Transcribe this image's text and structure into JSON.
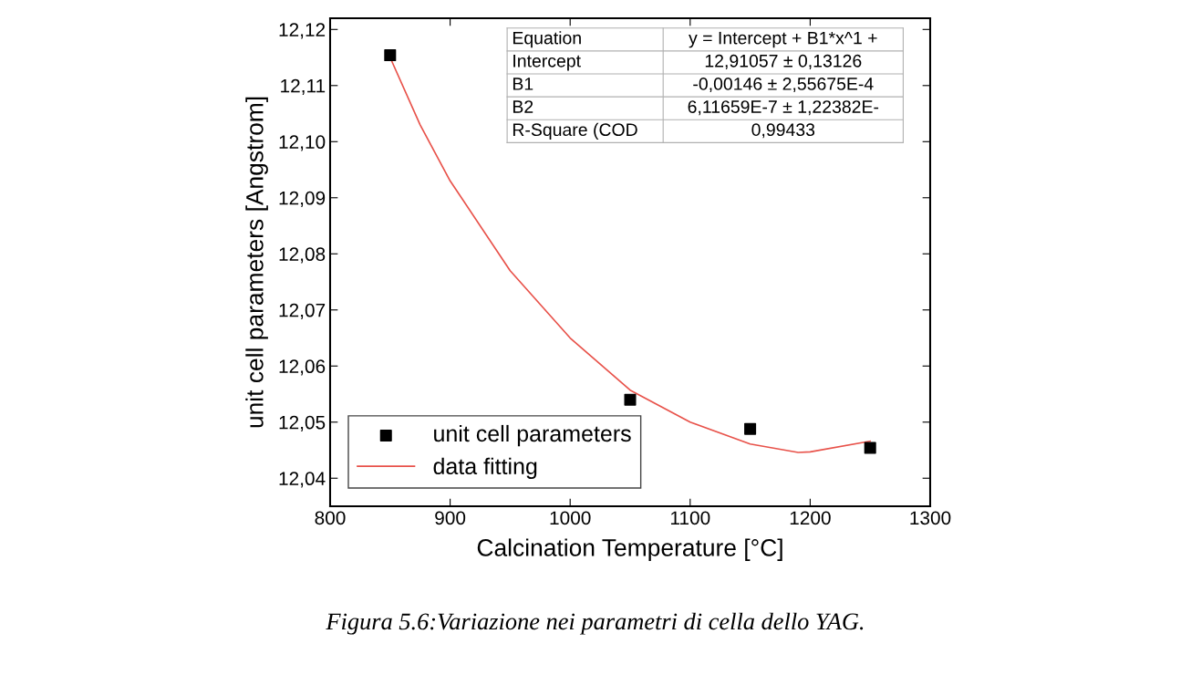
{
  "chart_data": {
    "type": "scatter",
    "xlabel": "Calcination Temperature [°C]",
    "ylabel": "unit cell parameters [Angstrom]",
    "xlim": [
      800,
      1300
    ],
    "xticks": [
      800,
      900,
      1000,
      1100,
      1200,
      1300
    ],
    "ylim": [
      12.035,
      12.122
    ],
    "yticks": [
      {
        "value": 12.04,
        "label": "12,04"
      },
      {
        "value": 12.05,
        "label": "12,05"
      },
      {
        "value": 12.06,
        "label": "12,06"
      },
      {
        "value": 12.07,
        "label": "12,07"
      },
      {
        "value": 12.08,
        "label": "12,08"
      },
      {
        "value": 12.09,
        "label": "12,09"
      },
      {
        "value": 12.1,
        "label": "12,10"
      },
      {
        "value": 12.11,
        "label": "12,11"
      },
      {
        "value": 12.12,
        "label": "12,12"
      }
    ],
    "grid": false,
    "legend": "bottom left",
    "series": [
      {
        "name": "unit cell parameters",
        "marker": "square",
        "color": "#000000",
        "x": [
          850,
          1050,
          1150,
          1250
        ],
        "values": [
          12.1154,
          12.054,
          12.0488,
          12.0454
        ]
      },
      {
        "name": "data fitting",
        "type": "line",
        "marker": "none",
        "color": "#e8524a",
        "x": [
          850,
          875,
          900,
          950,
          1000,
          1050,
          1100,
          1150,
          1190,
          1200,
          1250
        ],
        "values": [
          12.115,
          12.103,
          12.093,
          12.077,
          12.065,
          12.0557,
          12.05,
          12.0461,
          12.0446,
          12.0447,
          12.0466
        ]
      }
    ],
    "annotations": [
      "Equation",
      "y = Intercept + B1*x^1 +",
      "Intercept",
      "12,91057 ± 0,13126",
      "B1",
      "-0,00146 ± 2,55675E-4",
      "B2",
      "6,11659E-7 ± 1,22382E-",
      "R-Square (COD",
      "0,99433",
      "Figura 5.6:Variazione nei parametri di cella dello YAG."
    ]
  }
}
